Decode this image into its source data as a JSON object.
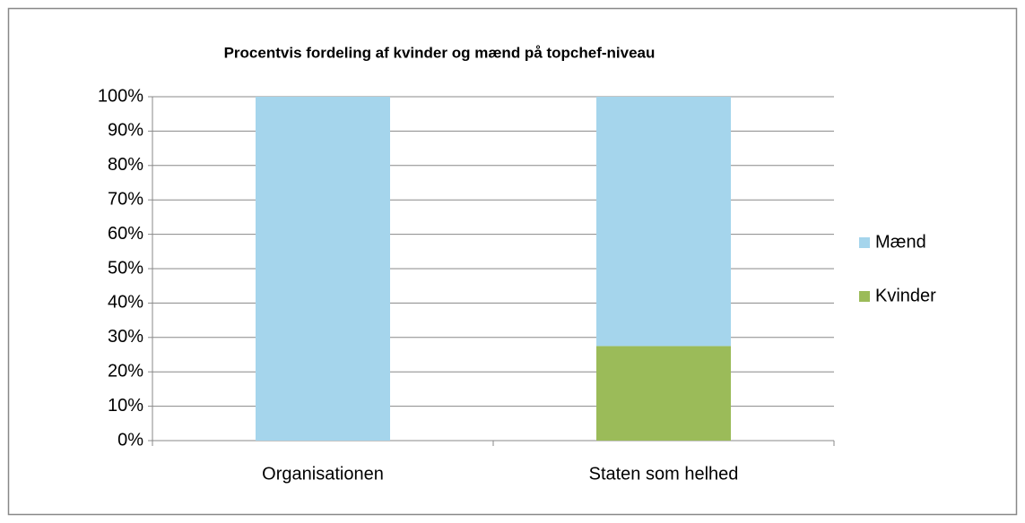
{
  "chart_data": {
    "type": "stacked_bar",
    "title": "Procentvis fordeling af kvinder og mænd på topchef-niveau",
    "categories": [
      "Organisationen",
      "Staten som helhed"
    ],
    "series": [
      {
        "name": "Kvinder",
        "color": "#9bbb59",
        "values": [
          0,
          27.5
        ]
      },
      {
        "name": "Mænd",
        "color": "#a5d5ec",
        "values": [
          100,
          72.5
        ]
      }
    ],
    "ylim": [
      0,
      100
    ],
    "yticks": [
      {
        "value": 0,
        "label": "0%"
      },
      {
        "value": 10,
        "label": "10%"
      },
      {
        "value": 20,
        "label": "20%"
      },
      {
        "value": 30,
        "label": "30%"
      },
      {
        "value": 40,
        "label": "40%"
      },
      {
        "value": 50,
        "label": "50%"
      },
      {
        "value": 60,
        "label": "60%"
      },
      {
        "value": 70,
        "label": "70%"
      },
      {
        "value": 80,
        "label": "80%"
      },
      {
        "value": 90,
        "label": "90%"
      },
      {
        "value": 100,
        "label": "100%"
      }
    ],
    "grid": true,
    "legend": "right"
  }
}
